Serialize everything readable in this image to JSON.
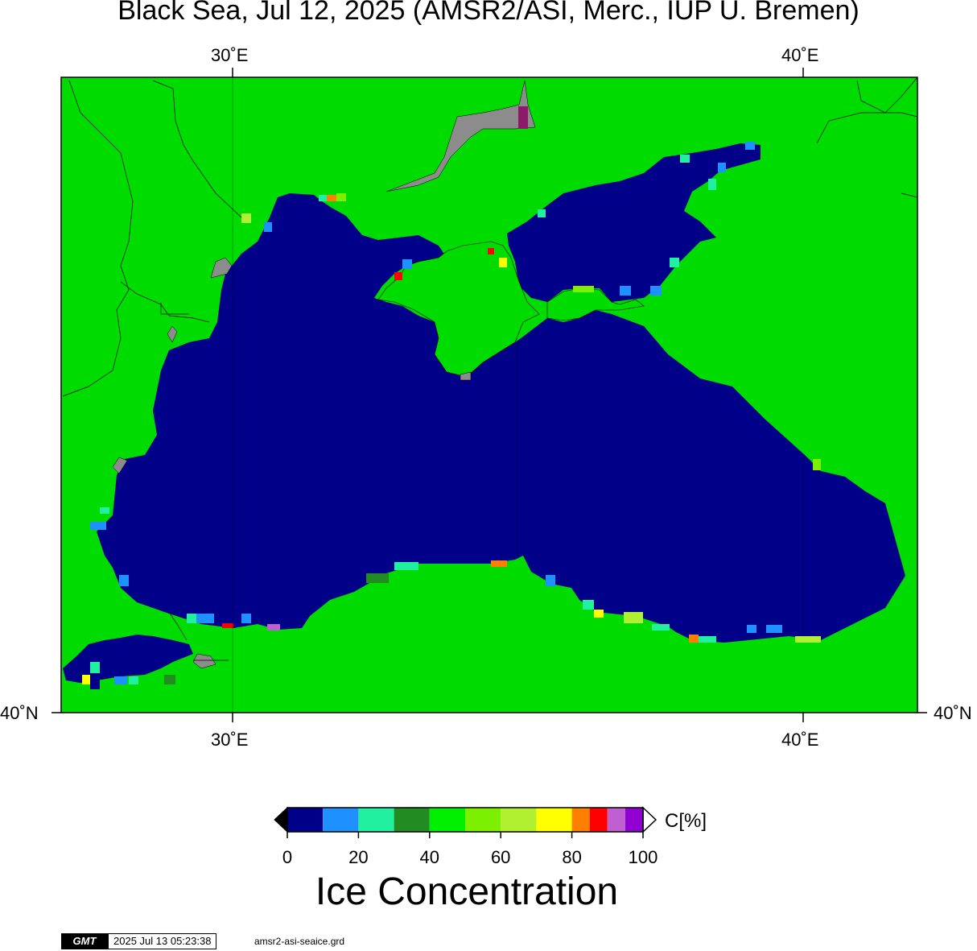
{
  "title": "Black Sea, Jul 12, 2025 (AMSR2/ASI, Merc., IUP U. Bremen)",
  "map": {
    "axes": {
      "top_ticks": [
        "30˚E",
        "40˚E"
      ],
      "bottom_ticks": [
        "30˚E",
        "40˚E"
      ],
      "left_ticks": [
        "40˚N"
      ],
      "right_ticks": [
        "40˚N"
      ]
    },
    "colors": {
      "land": "#00dc00",
      "sea": "#000088",
      "no_data": "#8c8c8c",
      "coast": "#000000"
    }
  },
  "colorbar": {
    "title": "Ice Concentration",
    "unit": "C[%]",
    "ticks": [
      "0",
      "20",
      "40",
      "60",
      "80",
      "100"
    ],
    "segments": [
      {
        "from": 0,
        "to": 10,
        "color": "#000088"
      },
      {
        "from": 10,
        "to": 20,
        "color": "#1e90ff"
      },
      {
        "from": 20,
        "to": 30,
        "color": "#20f0a0"
      },
      {
        "from": 30,
        "to": 40,
        "color": "#228b22"
      },
      {
        "from": 40,
        "to": 50,
        "color": "#00ee00"
      },
      {
        "from": 50,
        "to": 60,
        "color": "#7cf000"
      },
      {
        "from": 60,
        "to": 70,
        "color": "#b0f030"
      },
      {
        "from": 70,
        "to": 80,
        "color": "#ffff00"
      },
      {
        "from": 80,
        "to": 85,
        "color": "#ff7f00"
      },
      {
        "from": 85,
        "to": 90,
        "color": "#ff0000"
      },
      {
        "from": 90,
        "to": 95,
        "color": "#c060d0"
      },
      {
        "from": 95,
        "to": 100,
        "color": "#9000d0"
      }
    ]
  },
  "footer": {
    "logo": "GMT",
    "timestamp": "2025 Jul 13 05:23:38",
    "filename": "amsr2-asi-seaice.grd"
  }
}
